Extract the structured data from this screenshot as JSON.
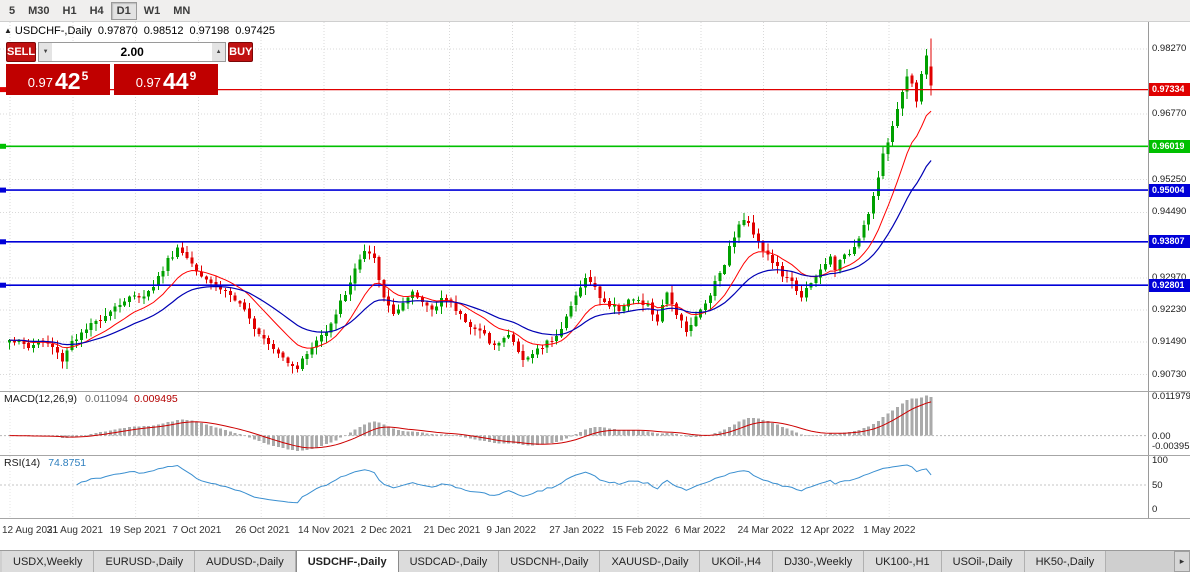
{
  "toolbar": {
    "timeframes": [
      {
        "label": "5",
        "active": false
      },
      {
        "label": "M30",
        "active": false
      },
      {
        "label": "H1",
        "active": false
      },
      {
        "label": "H4",
        "active": false
      },
      {
        "label": "D1",
        "active": true
      },
      {
        "label": "W1",
        "active": false
      },
      {
        "label": "MN",
        "active": false
      }
    ]
  },
  "chart_header": {
    "toggle_glyph": "▲",
    "symbol": "USDCHF-,Daily",
    "open": "0.97870",
    "high": "0.98512",
    "low": "0.97198",
    "close": "0.97425"
  },
  "trade_panel": {
    "sell_label": "SELL",
    "buy_label": "BUY",
    "volume": "2.00",
    "volume_down_glyph": "▼",
    "volume_up_glyph": "▲",
    "bid": {
      "big": "0.97",
      "mid": "42",
      "sup": "5"
    },
    "ask": {
      "big": "0.97",
      "mid": "44",
      "sup": "9"
    },
    "panel_color": "#c00000"
  },
  "price_axis": {
    "grid_prices": [
      0.9827,
      0.9677,
      0.9525,
      0.9449,
      0.9297,
      0.9223,
      0.9149,
      0.9073
    ]
  },
  "chart_data": {
    "type": "candlestick",
    "symbol": "USDCHF-",
    "timeframe": "Daily",
    "current_bar": {
      "open": 0.9787,
      "high": 0.98512,
      "low": 0.97198,
      "close": 0.97425
    },
    "price_range": {
      "top": 0.989,
      "bottom": 0.9035
    },
    "x_labels": [
      "12 Aug 2021",
      "31 Aug 2021",
      "19 Sep 2021",
      "7 Oct 2021",
      "26 Oct 2021",
      "14 Nov 2021",
      "2 Dec 2021",
      "21 Dec 2021",
      "9 Jan 2022",
      "27 Jan 2022",
      "15 Feb 2022",
      "6 Mar 2022",
      "24 Mar 2022",
      "12 Apr 2022",
      "1 May 2022"
    ],
    "close_anchors": [
      [
        0,
        0.9158
      ],
      [
        2,
        0.9148
      ],
      [
        4,
        0.9136
      ],
      [
        6,
        0.915
      ],
      [
        8,
        0.9144
      ],
      [
        9,
        0.9136
      ],
      [
        11,
        0.9108
      ],
      [
        12,
        0.913
      ],
      [
        13,
        0.9152
      ],
      [
        15,
        0.9166
      ],
      [
        17,
        0.9186
      ],
      [
        19,
        0.9204
      ],
      [
        21,
        0.9224
      ],
      [
        23,
        0.9238
      ],
      [
        25,
        0.925
      ],
      [
        27,
        0.9256
      ],
      [
        29,
        0.9264
      ],
      [
        31,
        0.9298
      ],
      [
        33,
        0.9338
      ],
      [
        35,
        0.9366
      ],
      [
        36,
        0.9356
      ],
      [
        38,
        0.9334
      ],
      [
        40,
        0.9306
      ],
      [
        42,
        0.9288
      ],
      [
        44,
        0.9274
      ],
      [
        46,
        0.9258
      ],
      [
        48,
        0.9232
      ],
      [
        50,
        0.92
      ],
      [
        52,
        0.9172
      ],
      [
        54,
        0.915
      ],
      [
        56,
        0.9126
      ],
      [
        58,
        0.9104
      ],
      [
        60,
        0.9092
      ],
      [
        62,
        0.912
      ],
      [
        64,
        0.915
      ],
      [
        66,
        0.9178
      ],
      [
        68,
        0.9216
      ],
      [
        70,
        0.9262
      ],
      [
        72,
        0.9318
      ],
      [
        74,
        0.9358
      ],
      [
        75,
        0.935
      ],
      [
        76,
        0.9338
      ],
      [
        77,
        0.9298
      ],
      [
        78,
        0.9246
      ],
      [
        80,
        0.9216
      ],
      [
        82,
        0.9234
      ],
      [
        84,
        0.9258
      ],
      [
        86,
        0.924
      ],
      [
        88,
        0.9226
      ],
      [
        90,
        0.9252
      ],
      [
        92,
        0.9234
      ],
      [
        94,
        0.9212
      ],
      [
        96,
        0.9188
      ],
      [
        98,
        0.917
      ],
      [
        100,
        0.9152
      ],
      [
        102,
        0.9146
      ],
      [
        104,
        0.9164
      ],
      [
        106,
        0.9128
      ],
      [
        107,
        0.9104
      ],
      [
        109,
        0.9122
      ],
      [
        111,
        0.914
      ],
      [
        113,
        0.9156
      ],
      [
        115,
        0.918
      ],
      [
        117,
        0.923
      ],
      [
        119,
        0.928
      ],
      [
        120,
        0.9294
      ],
      [
        121,
        0.9288
      ],
      [
        123,
        0.9254
      ],
      [
        125,
        0.9232
      ],
      [
        127,
        0.9226
      ],
      [
        129,
        0.9248
      ],
      [
        131,
        0.924
      ],
      [
        133,
        0.9232
      ],
      [
        135,
        0.9198
      ],
      [
        137,
        0.9258
      ],
      [
        139,
        0.9218
      ],
      [
        141,
        0.9178
      ],
      [
        143,
        0.9204
      ],
      [
        145,
        0.9238
      ],
      [
        147,
        0.9288
      ],
      [
        149,
        0.9334
      ],
      [
        151,
        0.9398
      ],
      [
        153,
        0.9434
      ],
      [
        155,
        0.9404
      ],
      [
        157,
        0.9364
      ],
      [
        159,
        0.9334
      ],
      [
        161,
        0.9304
      ],
      [
        163,
        0.9284
      ],
      [
        165,
        0.9258
      ],
      [
        167,
        0.928
      ],
      [
        169,
        0.9314
      ],
      [
        171,
        0.9344
      ],
      [
        172,
        0.9322
      ],
      [
        174,
        0.9344
      ],
      [
        176,
        0.9372
      ],
      [
        178,
        0.942
      ],
      [
        180,
        0.9484
      ],
      [
        182,
        0.9578
      ],
      [
        184,
        0.9648
      ],
      [
        186,
        0.9728
      ],
      [
        187,
        0.9764
      ],
      [
        188,
        0.9748
      ],
      [
        189,
        0.9706
      ],
      [
        190,
        0.977
      ],
      [
        191,
        0.9812
      ],
      [
        192,
        0.97425
      ]
    ],
    "levels": [
      {
        "price": 0.97334,
        "label": "0.97334",
        "color": "#e00000",
        "width": 1.3
      },
      {
        "price": 0.96019,
        "label": "0.96019",
        "color": "#00c000",
        "width": 1.6
      },
      {
        "price": 0.95004,
        "label": "0.95004",
        "color": "#0000d8",
        "width": 1.6
      },
      {
        "price": 0.93807,
        "label": "0.93807",
        "color": "#0000d8",
        "width": 1.6
      },
      {
        "price": 0.92801,
        "label": "0.92801",
        "color": "#0000d8",
        "width": 1.6
      }
    ],
    "moving_averages": [
      {
        "period": 12,
        "type": "ema",
        "color": "#ff0000"
      },
      {
        "period": 26,
        "type": "ema",
        "color": "#0000b4"
      }
    ],
    "macd": {
      "label": "MACD(12,26,9)",
      "value_main": "0.011094",
      "value_signal": "0.009495",
      "axis_top": "0.011979",
      "axis_zero": "0.00",
      "axis_bottom": "-0.00395"
    },
    "rsi": {
      "label": "RSI(14)",
      "value": "74.8751",
      "axis_top": "100",
      "axis_mid": "50",
      "axis_bottom": "0"
    },
    "colors": {
      "up": "#00a000",
      "down": "#e00000",
      "ma_fast": "#ff0000",
      "ma_slow": "#0000b4",
      "macd_hist": "#aaaaaa",
      "macd_signal": "#cc0000",
      "rsi": "#3a8fd0",
      "grid": "#d9d9d9"
    }
  },
  "tabs": {
    "scroll_right_glyph": "▸",
    "items": [
      {
        "label": "USDX,Weekly",
        "active": false
      },
      {
        "label": "EURUSD-,Daily",
        "active": false
      },
      {
        "label": "AUDUSD-,Daily",
        "active": false
      },
      {
        "label": "USDCHF-,Daily",
        "active": true
      },
      {
        "label": "USDCAD-,Daily",
        "active": false
      },
      {
        "label": "USDCNH-,Daily",
        "active": false
      },
      {
        "label": "XAUUSD-,Daily",
        "active": false
      },
      {
        "label": "UKOil-,H4",
        "active": false
      },
      {
        "label": "DJ30-,Weekly",
        "active": false
      },
      {
        "label": "UK100-,H1",
        "active": false
      },
      {
        "label": "USOil-,Daily",
        "active": false
      },
      {
        "label": "HK50-,Daily",
        "active": false
      }
    ]
  }
}
